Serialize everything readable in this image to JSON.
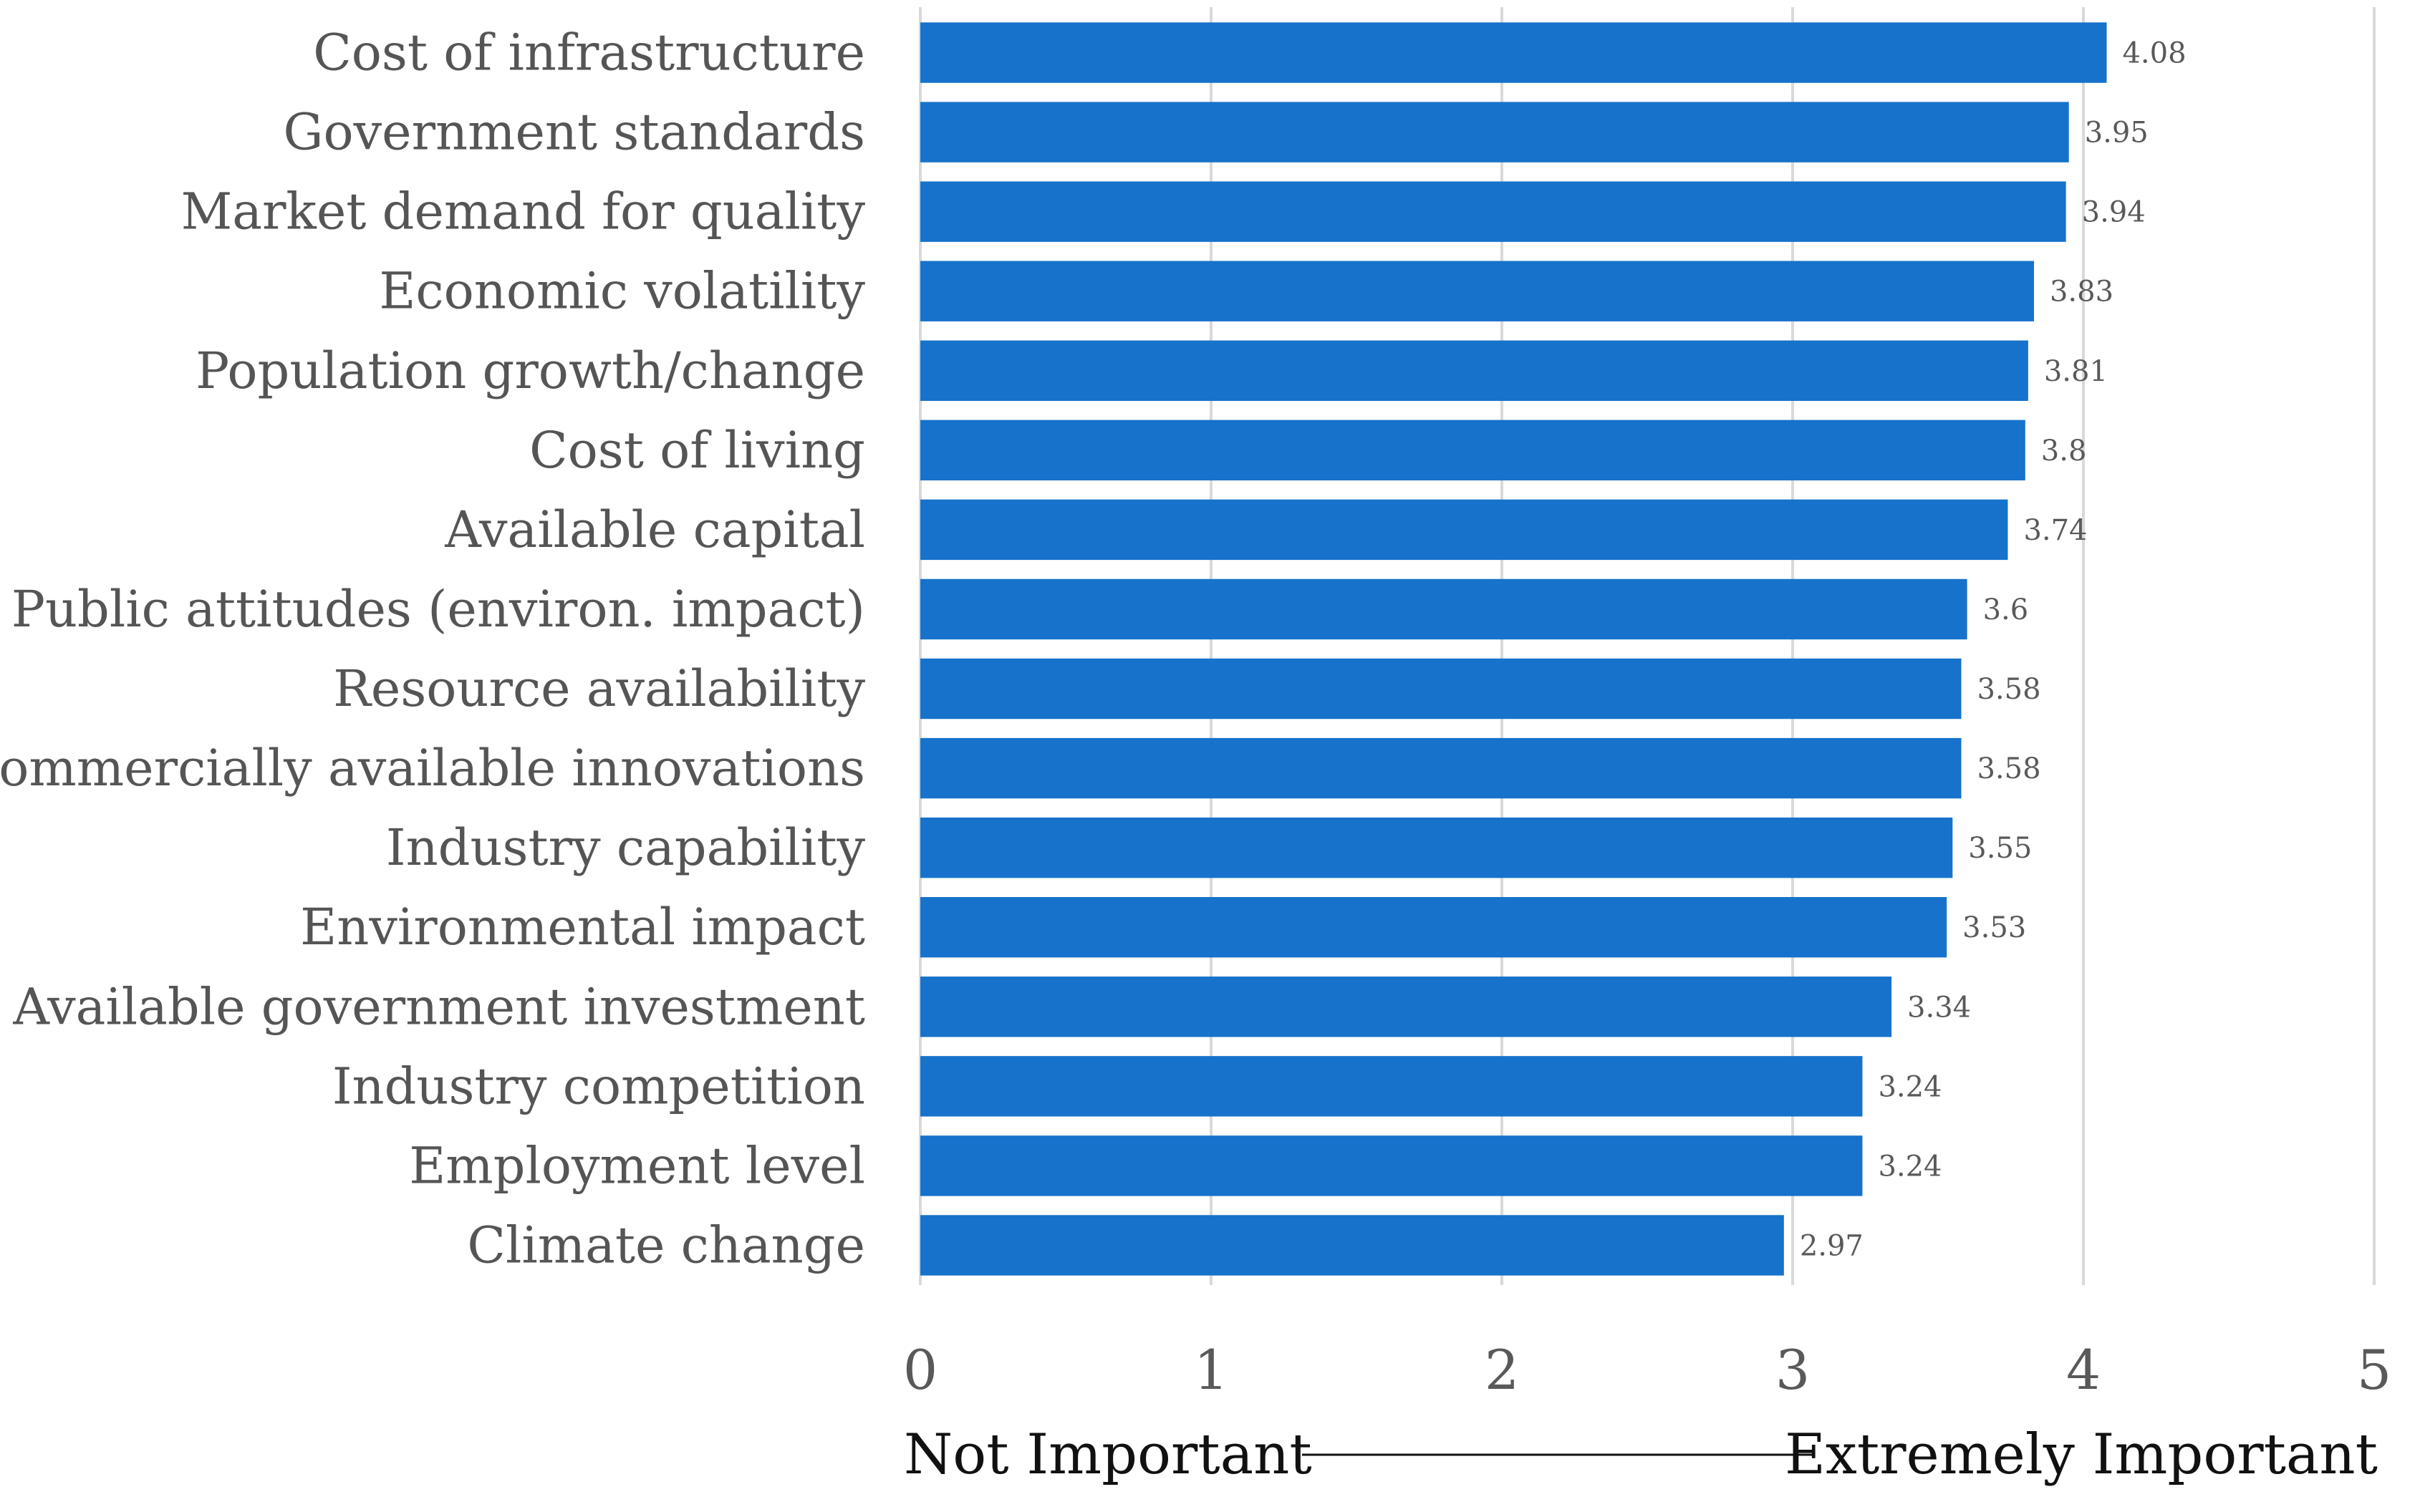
{
  "chart_data": {
    "type": "bar",
    "orientation": "horizontal",
    "categories": [
      "Cost of infrastructure",
      "Government standards",
      "Market demand for quality",
      "Economic volatility",
      "Population growth/change",
      "Cost of living",
      "Available capital",
      "Public attitudes (environ. impact)",
      "Resource availability",
      "Commercially available innovations",
      "Industry capability",
      "Environmental impact",
      "Available government investment",
      "Industry competition",
      "Employment level",
      "Climate change"
    ],
    "values": [
      4.08,
      3.95,
      3.94,
      3.83,
      3.81,
      3.8,
      3.74,
      3.6,
      3.58,
      3.58,
      3.55,
      3.53,
      3.34,
      3.24,
      3.24,
      2.97
    ],
    "value_labels": [
      "4.08",
      "3.95",
      "3.94",
      "3.83",
      "3.81",
      "3.8",
      "3.74",
      "3.6",
      "3.58",
      "3.58",
      "3.55",
      "3.53",
      "3.34",
      "3.24",
      "3.24",
      "2.97"
    ],
    "xlim": [
      0,
      5
    ],
    "xticks": [
      "0",
      "1",
      "2",
      "3",
      "4",
      "5"
    ],
    "xlabel_left": "Not Important",
    "xlabel_right": "Extremely Important",
    "title": "",
    "grid": true,
    "bar_color": "#1672CB"
  }
}
